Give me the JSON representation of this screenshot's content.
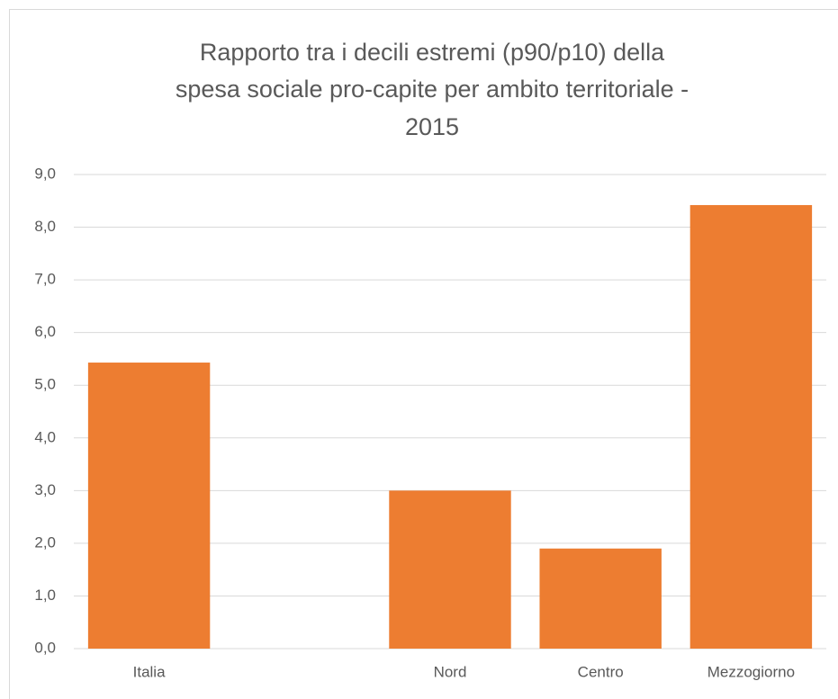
{
  "chart_data": {
    "type": "bar",
    "title": [
      "Rapporto tra i decili estremi (p90/p10) della",
      "spesa sociale pro-capite per ambito territoriale -",
      "2015"
    ],
    "categories": [
      "Italia",
      null,
      "Nord",
      "Centro",
      "Mezzogiorno"
    ],
    "values": [
      5.43,
      null,
      3.0,
      1.9,
      8.42
    ],
    "color": "#ed7d31",
    "ylim": [
      0,
      9
    ],
    "yticks": [
      {
        "value": 0,
        "label": "0,0"
      },
      {
        "value": 1,
        "label": "1,0"
      },
      {
        "value": 2,
        "label": "2,0"
      },
      {
        "value": 3,
        "label": "3,0"
      },
      {
        "value": 4,
        "label": "4,0"
      },
      {
        "value": 5,
        "label": "5,0"
      },
      {
        "value": 6,
        "label": "6,0"
      },
      {
        "value": 7,
        "label": "7,0"
      },
      {
        "value": 8,
        "label": "8,0"
      },
      {
        "value": 9,
        "label": "9,0"
      }
    ],
    "grid": true
  }
}
